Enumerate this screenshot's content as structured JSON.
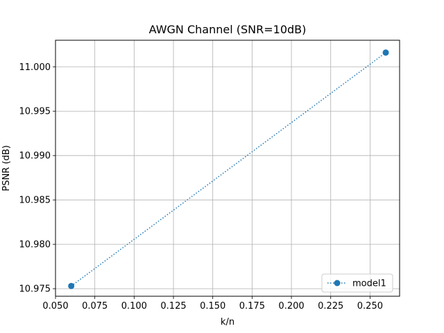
{
  "chart_data": {
    "type": "line",
    "title": "AWGN Channel (SNR=10dB)",
    "xlabel": "k/n",
    "ylabel": "PSNR (dB)",
    "xlim": [
      0.05,
      0.2688
    ],
    "ylim": [
      10.97415,
      11.00299
    ],
    "xticks": [
      "0.050",
      "0.075",
      "0.100",
      "0.125",
      "0.150",
      "0.175",
      "0.200",
      "0.225",
      "0.250"
    ],
    "yticks": [
      "10.975",
      "10.980",
      "10.985",
      "10.990",
      "10.995",
      "11.000"
    ],
    "grid": true,
    "legend_position": "lower right",
    "series": [
      {
        "name": "model1",
        "x": [
          0.06,
          0.26
        ],
        "y": [
          10.9753,
          11.0016
        ],
        "color": "#1f77b4",
        "line_style": "dotted",
        "marker": "circle"
      }
    ]
  }
}
